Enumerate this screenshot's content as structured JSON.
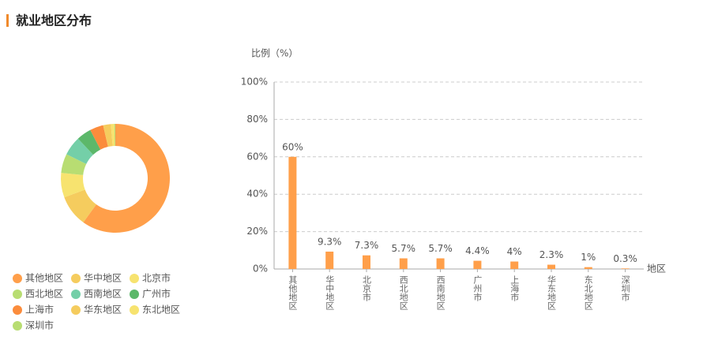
{
  "title": "就业地区分布",
  "chart_data": [
    {
      "type": "pie",
      "categories": [
        "其他地区",
        "华中地区",
        "北京市",
        "西北地区",
        "西南地区",
        "广州市",
        "上海市",
        "华东地区",
        "东北地区",
        "深圳市"
      ],
      "values": [
        60,
        9.3,
        7.3,
        5.7,
        5.7,
        4.4,
        4,
        2.3,
        1,
        0.3
      ],
      "colors": [
        "#ff9f4a",
        "#f5cc5e",
        "#f7e36f",
        "#b8dd72",
        "#74cfa8",
        "#5cb86a",
        "#fb8c3c",
        "#f5cc5e",
        "#f7e36f",
        "#b8dd72"
      ],
      "donut": true
    },
    {
      "type": "bar",
      "y_label": "比例（%）",
      "x_label": "地区",
      "categories": [
        "其他地区",
        "华中地区",
        "北京市",
        "西北地区",
        "西南地区",
        "广州市",
        "上海市",
        "华东地区",
        "东北地区",
        "深圳市"
      ],
      "values": [
        60,
        9.3,
        7.3,
        5.7,
        5.7,
        4.4,
        4,
        2.3,
        1,
        0.3
      ],
      "value_labels": [
        "60%",
        "9.3%",
        "7.3%",
        "5.7%",
        "5.7%",
        "4.4%",
        "4%",
        "2.3%",
        "1%",
        "0.3%"
      ],
      "color": "#ff9f4a",
      "ylim": [
        0,
        100
      ],
      "yticks": [
        {
          "value": 0,
          "label": "0%"
        },
        {
          "value": 20,
          "label": "20%"
        },
        {
          "value": 40,
          "label": "40%"
        },
        {
          "value": 60,
          "label": "60%"
        },
        {
          "value": 80,
          "label": "80%"
        },
        {
          "value": 100,
          "label": "100%"
        }
      ],
      "grid": true
    }
  ]
}
